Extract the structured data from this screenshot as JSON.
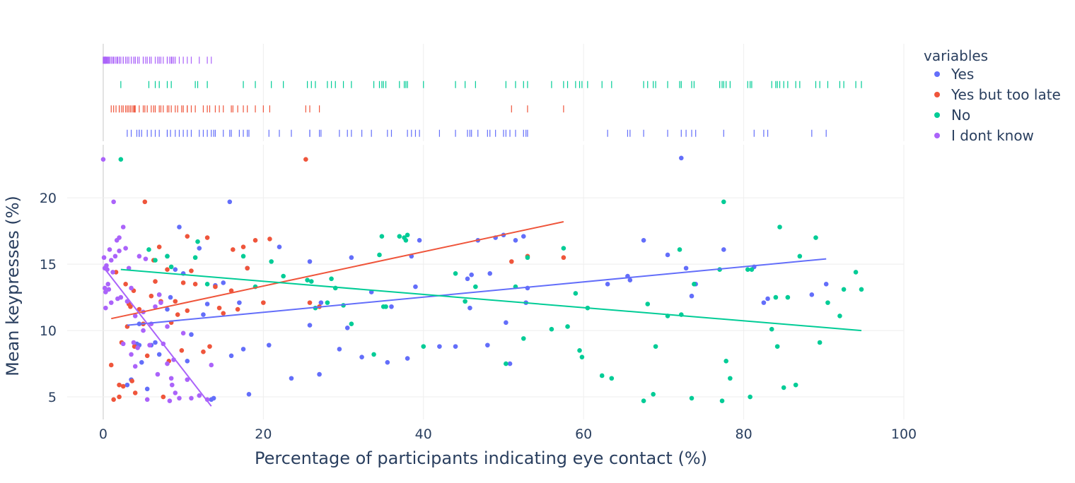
{
  "chart_data": {
    "type": "scatter",
    "title": "",
    "xlabel": "Percentage of participants indicating eye contact (%)",
    "ylabel": "Mean keypresses (%)",
    "xlim": [
      -4.5,
      100
    ],
    "ylim": [
      3.3,
      24
    ],
    "x_ticks": [
      0,
      20,
      40,
      60,
      80,
      100
    ],
    "y_ticks": [
      5,
      10,
      15,
      20
    ],
    "grid": true,
    "marginal": "rug",
    "trendline": "ols",
    "legend": {
      "title": "variables",
      "placement": "top-right"
    },
    "series": [
      {
        "name": "Yes",
        "color": "#636efa",
        "points": [
          [
            3,
            5.9
          ],
          [
            3.5,
            6.3
          ],
          [
            4.2,
            9.0
          ],
          [
            4.5,
            10.5
          ],
          [
            4.5,
            8.9
          ],
          [
            4.8,
            7.6
          ],
          [
            5.5,
            5.6
          ],
          [
            6.0,
            8.9
          ],
          [
            6.5,
            9.1
          ],
          [
            7,
            8.2
          ],
          [
            8,
            15.6
          ],
          [
            8,
            11.6
          ],
          [
            8.4,
            12.5
          ],
          [
            9,
            14.6
          ],
          [
            9.5,
            17.8
          ],
          [
            10,
            14.3
          ],
          [
            10.5,
            7.7
          ],
          [
            11,
            9.7
          ],
          [
            12,
            16.2
          ],
          [
            12.5,
            11.2
          ],
          [
            13,
            12.0
          ],
          [
            13.5,
            4.8
          ],
          [
            13.8,
            4.9
          ],
          [
            14,
            13.4
          ],
          [
            15,
            13.6
          ],
          [
            15.8,
            19.7
          ],
          [
            16,
            8.1
          ],
          [
            17,
            12.1
          ],
          [
            17.5,
            8.6
          ],
          [
            18,
            14.7
          ],
          [
            18.2,
            5.2
          ],
          [
            20.7,
            8.9
          ],
          [
            22,
            16.3
          ],
          [
            23.5,
            6.4
          ],
          [
            25.8,
            15.2
          ],
          [
            25.8,
            10.4
          ],
          [
            27,
            6.7
          ],
          [
            27.2,
            12.1
          ],
          [
            29.5,
            8.6
          ],
          [
            30.5,
            10.2
          ],
          [
            31,
            15.5
          ],
          [
            32.3,
            8.0
          ],
          [
            33.5,
            12.9
          ],
          [
            35.5,
            7.6
          ],
          [
            36,
            11.8
          ],
          [
            38,
            7.9
          ],
          [
            38.5,
            15.6
          ],
          [
            39,
            13.3
          ],
          [
            39.5,
            16.8
          ],
          [
            42,
            8.8
          ],
          [
            44,
            8.8
          ],
          [
            45.5,
            13.9
          ],
          [
            45.8,
            11.7
          ],
          [
            46,
            14.2
          ],
          [
            46.8,
            16.8
          ],
          [
            48,
            8.9
          ],
          [
            48.3,
            14.3
          ],
          [
            49,
            17.0
          ],
          [
            50,
            17.2
          ],
          [
            50.3,
            10.6
          ],
          [
            50.8,
            7.5
          ],
          [
            51.5,
            16.8
          ],
          [
            52.5,
            17.1
          ],
          [
            52.8,
            12.1
          ],
          [
            53,
            13.2
          ],
          [
            63,
            13.5
          ],
          [
            65.5,
            14.1
          ],
          [
            65.8,
            13.8
          ],
          [
            67.5,
            16.8
          ],
          [
            70.5,
            15.7
          ],
          [
            72.2,
            23
          ],
          [
            72.8,
            14.7
          ],
          [
            73.5,
            12.6
          ],
          [
            74,
            13.5
          ],
          [
            77.5,
            16.1
          ],
          [
            81.3,
            14.8
          ],
          [
            82.5,
            12.1
          ],
          [
            83,
            12.4
          ],
          [
            88.5,
            12.7
          ],
          [
            90.3,
            13.5
          ]
        ]
      },
      {
        "name": "Yes but too late",
        "color": "#ef553b",
        "points": [
          [
            1,
            7.4
          ],
          [
            1.3,
            4.8
          ],
          [
            1.6,
            14.4
          ],
          [
            2,
            5.9
          ],
          [
            2,
            5.0
          ],
          [
            2.3,
            9.1
          ],
          [
            2.5,
            5.8
          ],
          [
            2.8,
            13.5
          ],
          [
            3,
            10.3
          ],
          [
            3.2,
            12.0
          ],
          [
            3.4,
            11.8
          ],
          [
            3.6,
            6.2
          ],
          [
            3.8,
            13.0
          ],
          [
            3.9,
            8.8
          ],
          [
            4,
            5.3
          ],
          [
            4.5,
            11.6
          ],
          [
            5,
            10.5
          ],
          [
            5.2,
            19.7
          ],
          [
            5.5,
            8.1
          ],
          [
            6,
            12.6
          ],
          [
            6.3,
            15.3
          ],
          [
            6.5,
            13.7
          ],
          [
            7,
            16.3
          ],
          [
            7.2,
            12.2
          ],
          [
            7.5,
            5.0
          ],
          [
            8,
            14.6
          ],
          [
            8.2,
            7.7
          ],
          [
            8.5,
            10.6
          ],
          [
            9,
            12.2
          ],
          [
            9.3,
            11.2
          ],
          [
            9.8,
            8.5
          ],
          [
            10,
            13.6
          ],
          [
            10.5,
            17.1
          ],
          [
            10.5,
            11.5
          ],
          [
            11,
            14.5
          ],
          [
            11.5,
            13.5
          ],
          [
            12.5,
            8.4
          ],
          [
            13,
            17.0
          ],
          [
            13.3,
            8.8
          ],
          [
            14,
            13.3
          ],
          [
            14.5,
            11.7
          ],
          [
            15,
            11.3
          ],
          [
            16,
            13.0
          ],
          [
            16.2,
            16.1
          ],
          [
            16.8,
            11.6
          ],
          [
            17.5,
            16.3
          ],
          [
            18,
            14.7
          ],
          [
            19,
            16.8
          ],
          [
            20,
            12.1
          ],
          [
            20.8,
            16.9
          ],
          [
            25.3,
            22.9
          ],
          [
            25.8,
            12.1
          ],
          [
            27,
            11.8
          ],
          [
            51,
            15.2
          ],
          [
            53,
            15.6
          ],
          [
            57.5,
            15.5
          ]
        ]
      },
      {
        "name": "No",
        "color": "#00cc96",
        "points": [
          [
            2.2,
            22.9
          ],
          [
            5.7,
            16.1
          ],
          [
            6.5,
            15.3
          ],
          [
            7,
            12.7
          ],
          [
            8,
            15.6
          ],
          [
            8.5,
            14.8
          ],
          [
            11.5,
            15.5
          ],
          [
            11.8,
            16.7
          ],
          [
            13,
            13.5
          ],
          [
            17.5,
            15.6
          ],
          [
            19,
            13.3
          ],
          [
            21,
            15.2
          ],
          [
            22.5,
            14.1
          ],
          [
            25.5,
            13.8
          ],
          [
            26,
            13.7
          ],
          [
            26.5,
            11.7
          ],
          [
            28,
            12.1
          ],
          [
            28.5,
            13.9
          ],
          [
            29,
            13.2
          ],
          [
            30,
            11.9
          ],
          [
            31,
            10.5
          ],
          [
            33.8,
            8.2
          ],
          [
            34.5,
            15.7
          ],
          [
            34.8,
            17.1
          ],
          [
            35,
            11.8
          ],
          [
            35.3,
            11.8
          ],
          [
            37,
            17.1
          ],
          [
            37.6,
            17.0
          ],
          [
            37.8,
            16.8
          ],
          [
            38,
            17.2
          ],
          [
            40,
            8.8
          ],
          [
            44,
            14.3
          ],
          [
            45.2,
            12.2
          ],
          [
            46.5,
            13.3
          ],
          [
            50.3,
            7.5
          ],
          [
            51.5,
            13.3
          ],
          [
            52.5,
            9.4
          ],
          [
            53,
            15.5
          ],
          [
            56,
            10.1
          ],
          [
            57.5,
            16.2
          ],
          [
            58,
            10.3
          ],
          [
            59,
            12.8
          ],
          [
            59.5,
            8.5
          ],
          [
            59.8,
            8.0
          ],
          [
            60.5,
            11.7
          ],
          [
            62.3,
            6.6
          ],
          [
            63.5,
            6.4
          ],
          [
            67.5,
            4.7
          ],
          [
            68,
            12.0
          ],
          [
            68.7,
            5.2
          ],
          [
            69,
            8.8
          ],
          [
            70.5,
            11.1
          ],
          [
            72,
            16.1
          ],
          [
            72.2,
            11.2
          ],
          [
            73.5,
            4.9
          ],
          [
            73.8,
            13.5
          ],
          [
            77,
            14.6
          ],
          [
            77.3,
            4.7
          ],
          [
            77.5,
            19.7
          ],
          [
            77.8,
            7.7
          ],
          [
            78.3,
            6.4
          ],
          [
            80.5,
            14.6
          ],
          [
            80.8,
            5.0
          ],
          [
            81,
            14.6
          ],
          [
            83.5,
            10.1
          ],
          [
            84,
            12.5
          ],
          [
            84.2,
            8.8
          ],
          [
            84.5,
            17.8
          ],
          [
            85,
            5.7
          ],
          [
            85.5,
            12.5
          ],
          [
            86.5,
            5.9
          ],
          [
            87,
            15.6
          ],
          [
            89,
            17.0
          ],
          [
            89.5,
            9.1
          ],
          [
            90.5,
            12.1
          ],
          [
            92,
            11.1
          ],
          [
            92.5,
            13.1
          ],
          [
            94,
            14.4
          ],
          [
            94.7,
            13.1
          ]
        ]
      },
      {
        "name": "I dont know",
        "color": "#ab63fa",
        "points": [
          [
            0,
            22.9
          ],
          [
            0.1,
            15.5
          ],
          [
            0.2,
            14.7
          ],
          [
            0.2,
            13.2
          ],
          [
            0.3,
            12.9
          ],
          [
            0.3,
            11.7
          ],
          [
            0.4,
            14.9
          ],
          [
            0.5,
            14.6
          ],
          [
            0.6,
            13.5
          ],
          [
            0.7,
            13.1
          ],
          [
            0.8,
            16.1
          ],
          [
            1,
            12.1
          ],
          [
            1,
            15.3
          ],
          [
            1.2,
            14.4
          ],
          [
            1.3,
            19.7
          ],
          [
            1.5,
            15.6
          ],
          [
            1.7,
            16.8
          ],
          [
            1.8,
            12.4
          ],
          [
            2,
            17.0
          ],
          [
            2,
            16.0
          ],
          [
            2.2,
            12.5
          ],
          [
            2.5,
            17.8
          ],
          [
            2.5,
            9.0
          ],
          [
            2.8,
            16.2
          ],
          [
            3,
            12.2
          ],
          [
            3.2,
            14.7
          ],
          [
            3.5,
            8.2
          ],
          [
            3.5,
            13.2
          ],
          [
            3.8,
            9.1
          ],
          [
            4,
            7.3
          ],
          [
            4,
            11.1
          ],
          [
            4.3,
            8.7
          ],
          [
            4.5,
            15.6
          ],
          [
            5,
            10.0
          ],
          [
            5,
            11.4
          ],
          [
            5.3,
            15.4
          ],
          [
            5.5,
            4.8
          ],
          [
            5.8,
            8.9
          ],
          [
            6,
            10.5
          ],
          [
            6.5,
            11.8
          ],
          [
            6.8,
            6.7
          ],
          [
            7,
            12.7
          ],
          [
            7.2,
            12.1
          ],
          [
            7.5,
            9.0
          ],
          [
            8,
            10.3
          ],
          [
            8,
            7.5
          ],
          [
            8.3,
            4.7
          ],
          [
            8.5,
            6.4
          ],
          [
            8.6,
            5.9
          ],
          [
            8.8,
            7.8
          ],
          [
            9,
            5.3
          ],
          [
            9.5,
            4.9
          ],
          [
            10,
            9.8
          ],
          [
            10.5,
            6.3
          ],
          [
            11,
            4.9
          ],
          [
            12,
            5.1
          ],
          [
            13,
            4.8
          ],
          [
            13.5,
            7.4
          ]
        ]
      }
    ],
    "trendlines": [
      {
        "series": "Yes",
        "x": [
          3,
          90.3
        ],
        "y": [
          10.4,
          15.4
        ]
      },
      {
        "series": "Yes but too late",
        "x": [
          1,
          57.5
        ],
        "y": [
          10.9,
          18.2
        ]
      },
      {
        "series": "No",
        "x": [
          2.2,
          94.7
        ],
        "y": [
          14.6,
          10.0
        ]
      },
      {
        "series": "I dont know",
        "x": [
          0,
          13.5
        ],
        "y": [
          14.8,
          4.3
        ]
      }
    ]
  }
}
